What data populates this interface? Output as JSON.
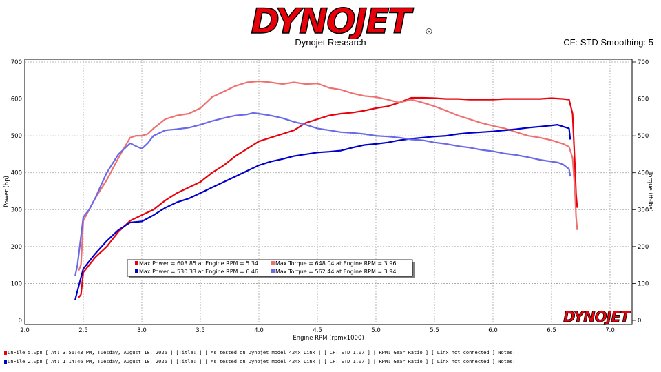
{
  "header": {
    "logo_text": "DYNOJET",
    "logo_registered": "®",
    "subtitle": "Dynojet Research",
    "cf_text": "CF: STD Smoothing: 5"
  },
  "watermark": "DYNOJET",
  "colors": {
    "red_power": "#e8000a",
    "red_torque": "#f07070",
    "blue_power": "#0000cc",
    "blue_torque": "#6a6ae8"
  },
  "chart_data": {
    "type": "line",
    "xlabel": "Engine RPM (rpmx1000)",
    "ylabel_left": "Power (hp)",
    "ylabel_right": "Torque (ft-lbs)",
    "xlim": [
      2.0,
      7.0
    ],
    "ylim": [
      0,
      700
    ],
    "xticks": [
      "2.0",
      "2.5",
      "3.0",
      "3.5",
      "4.0",
      "4.5",
      "5.0",
      "5.5",
      "6.0",
      "6.5",
      "7.0"
    ],
    "yticks": [
      "0",
      "100",
      "200",
      "300",
      "400",
      "500",
      "600",
      "700"
    ],
    "grid": true,
    "series": [
      {
        "role": "red-power",
        "color": "#e8000a",
        "x": [
          2.46,
          2.48,
          2.5,
          2.55,
          2.6,
          2.7,
          2.8,
          2.9,
          3.0,
          3.1,
          3.2,
          3.3,
          3.4,
          3.5,
          3.6,
          3.7,
          3.8,
          3.9,
          4.0,
          4.1,
          4.2,
          4.3,
          4.4,
          4.5,
          4.6,
          4.7,
          4.8,
          4.9,
          5.0,
          5.1,
          5.2,
          5.3,
          5.4,
          5.5,
          5.6,
          5.7,
          5.8,
          5.9,
          6.0,
          6.1,
          6.2,
          6.3,
          6.4,
          6.5,
          6.6,
          6.65,
          6.68,
          6.7,
          6.71,
          6.72
        ],
        "y": [
          62,
          70,
          130,
          150,
          170,
          200,
          240,
          270,
          285,
          300,
          325,
          345,
          360,
          375,
          400,
          420,
          445,
          465,
          485,
          495,
          505,
          515,
          535,
          545,
          555,
          560,
          563,
          568,
          575,
          580,
          590,
          603,
          603,
          602,
          600,
          600,
          598,
          598,
          598,
          600,
          600,
          600,
          600,
          602,
          600,
          598,
          560,
          420,
          340,
          305
        ]
      },
      {
        "role": "pink-torque",
        "color": "#f07070",
        "x": [
          2.46,
          2.48,
          2.5,
          2.55,
          2.6,
          2.7,
          2.8,
          2.9,
          2.95,
          3.0,
          3.05,
          3.1,
          3.2,
          3.3,
          3.4,
          3.5,
          3.6,
          3.7,
          3.8,
          3.9,
          4.0,
          4.1,
          4.2,
          4.3,
          4.4,
          4.5,
          4.6,
          4.7,
          4.8,
          4.9,
          5.0,
          5.1,
          5.2,
          5.3,
          5.4,
          5.5,
          5.6,
          5.7,
          5.8,
          5.9,
          6.0,
          6.1,
          6.2,
          6.3,
          6.4,
          6.5,
          6.6,
          6.65,
          6.68,
          6.7,
          6.71,
          6.72
        ],
        "y": [
          135,
          150,
          270,
          300,
          330,
          380,
          440,
          495,
          500,
          500,
          505,
          520,
          545,
          555,
          560,
          575,
          605,
          620,
          635,
          645,
          648,
          645,
          640,
          645,
          640,
          642,
          630,
          625,
          615,
          608,
          605,
          598,
          590,
          598,
          590,
          580,
          568,
          555,
          545,
          535,
          527,
          520,
          510,
          500,
          495,
          488,
          478,
          470,
          440,
          350,
          280,
          245
        ]
      },
      {
        "role": "blue-power",
        "color": "#0000cc",
        "x": [
          2.43,
          2.45,
          2.5,
          2.55,
          2.6,
          2.7,
          2.8,
          2.9,
          3.0,
          3.1,
          3.2,
          3.3,
          3.4,
          3.5,
          3.6,
          3.7,
          3.8,
          3.9,
          4.0,
          4.1,
          4.2,
          4.3,
          4.4,
          4.5,
          4.6,
          4.7,
          4.8,
          4.9,
          5.0,
          5.1,
          5.2,
          5.3,
          5.4,
          5.5,
          5.6,
          5.7,
          5.8,
          5.9,
          6.0,
          6.1,
          6.2,
          6.3,
          6.4,
          6.5,
          6.55,
          6.6,
          6.65,
          6.66
        ],
        "y": [
          55,
          80,
          140,
          160,
          180,
          215,
          245,
          265,
          268,
          285,
          305,
          320,
          330,
          345,
          360,
          375,
          390,
          405,
          420,
          430,
          437,
          445,
          450,
          455,
          457,
          460,
          468,
          475,
          478,
          482,
          488,
          492,
          495,
          498,
          500,
          505,
          508,
          510,
          512,
          515,
          518,
          522,
          525,
          528,
          530,
          525,
          520,
          490
        ]
      },
      {
        "role": "light-blue-torque",
        "color": "#6a6ae8",
        "x": [
          2.43,
          2.45,
          2.5,
          2.55,
          2.6,
          2.7,
          2.8,
          2.9,
          2.95,
          3.0,
          3.05,
          3.1,
          3.2,
          3.3,
          3.4,
          3.5,
          3.6,
          3.7,
          3.8,
          3.9,
          3.95,
          4.0,
          4.1,
          4.2,
          4.3,
          4.4,
          4.5,
          4.6,
          4.7,
          4.8,
          4.9,
          5.0,
          5.1,
          5.2,
          5.3,
          5.4,
          5.5,
          5.6,
          5.7,
          5.8,
          5.9,
          6.0,
          6.1,
          6.2,
          6.3,
          6.4,
          6.5,
          6.55,
          6.6,
          6.65,
          6.66
        ],
        "y": [
          120,
          150,
          280,
          300,
          330,
          400,
          450,
          480,
          472,
          465,
          480,
          500,
          515,
          518,
          522,
          530,
          540,
          548,
          555,
          558,
          562,
          560,
          555,
          548,
          538,
          530,
          520,
          515,
          510,
          508,
          505,
          500,
          498,
          495,
          490,
          488,
          482,
          478,
          472,
          468,
          462,
          458,
          452,
          448,
          442,
          435,
          430,
          428,
          422,
          410,
          390
        ]
      }
    ],
    "legend": {
      "placement": "lower-left",
      "entries": [
        {
          "color": "#e8000a",
          "text": "Max Power = 603.85 at Engine RPM = 5.34"
        },
        {
          "color": "#f07070",
          "text": "Max Torque = 648.04 at Engine RPM = 3.96"
        },
        {
          "color": "#0000cc",
          "text": "Max Power = 530.33 at Engine RPM = 6.46"
        },
        {
          "color": "#6a6ae8",
          "text": "Max Torque = 562.44 at Engine RPM = 3.94"
        }
      ]
    }
  },
  "footer": {
    "lines": [
      {
        "color": "#e8000a",
        "text": "unFile_5.wp8  [ At: 3:56:43 PM, Tuesday, August 18, 2026 ] [Title: ]  [ As tested on Dynojet Model 424x Linx ] [ CF: STD 1.07 ] [ RPM: Gear Ratio ] [ Linx not connected ] Notes:"
      },
      {
        "color": "#0000cc",
        "text": "unFile_2.wp8  [ At: 1:14:46 PM, Tuesday, August 18, 2026 ] [Title: ]  [ As tested on Dynojet Model 424x Linx ] [ CF: STD 1.07 ] [ RPM: Gear Ratio ] [ Linx not connected ] Notes:"
      }
    ]
  }
}
